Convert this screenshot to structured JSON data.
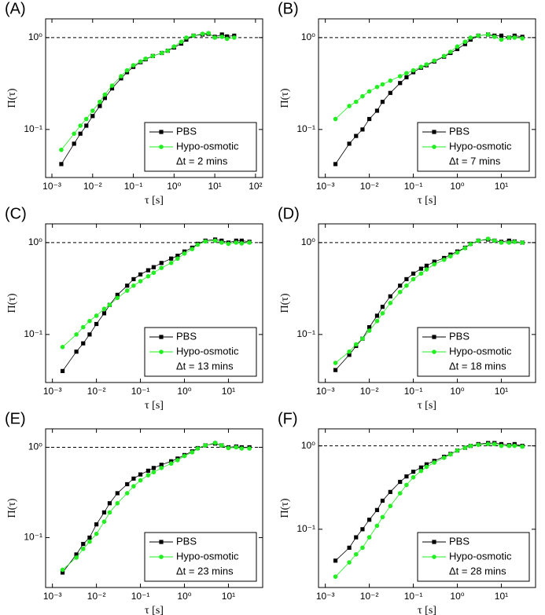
{
  "chart_data": [
    {
      "type": "line",
      "panel_label": "(A)",
      "x_label": "τ [s]",
      "y_label": "Π(τ)",
      "annotation": "Δt = 2 mins",
      "legend": "lower right",
      "log_x": true,
      "log_y": true,
      "reference_line": 1,
      "xlim": [
        0.0007,
        150
      ],
      "ylim": [
        0.03,
        1.6
      ],
      "xticks": [
        {
          "value": 0.001,
          "label": "10⁻³"
        },
        {
          "value": 0.01,
          "label": "10⁻²"
        },
        {
          "value": 0.1,
          "label": "10⁻¹"
        },
        {
          "value": 1,
          "label": "10⁰"
        },
        {
          "value": 10,
          "label": "10¹"
        },
        {
          "value": 100,
          "label": "10²"
        }
      ],
      "yticks": [
        {
          "value": 0.1,
          "label": "10⁻¹"
        },
        {
          "value": 1,
          "label": "10⁰"
        }
      ],
      "x": [
        0.0017,
        0.0035,
        0.005,
        0.007,
        0.01,
        0.015,
        0.02,
        0.03,
        0.05,
        0.07,
        0.1,
        0.15,
        0.2,
        0.3,
        0.5,
        0.7,
        1,
        1.5,
        2,
        3,
        5,
        7,
        10,
        15,
        20,
        30
      ],
      "series": [
        {
          "name": "PBS",
          "color": "#000000",
          "marker": "square",
          "values": [
            0.042,
            0.07,
            0.09,
            0.11,
            0.14,
            0.18,
            0.22,
            0.28,
            0.36,
            0.42,
            0.48,
            0.54,
            0.58,
            0.63,
            0.68,
            0.72,
            0.78,
            0.86,
            0.95,
            1.05,
            1.08,
            1.1,
            1.02,
            1.08,
            1.03,
            1.05
          ]
        },
        {
          "name": "Hypo-osmotic",
          "color": "#22ee22",
          "marker": "circle",
          "values": [
            0.06,
            0.09,
            0.11,
            0.13,
            0.16,
            0.2,
            0.24,
            0.3,
            0.38,
            0.44,
            0.5,
            0.55,
            0.59,
            0.63,
            0.68,
            0.72,
            0.8,
            0.9,
            1.0,
            1.05,
            1.1,
            1.12,
            1.0,
            1.02,
            0.97,
            1.0
          ]
        }
      ]
    },
    {
      "type": "line",
      "panel_label": "(B)",
      "x_label": "τ [s]",
      "y_label": "Π(τ)",
      "annotation": "Δt = 7 mins",
      "legend": "lower right",
      "log_x": true,
      "log_y": true,
      "reference_line": 1,
      "xlim": [
        0.0007,
        60
      ],
      "ylim": [
        0.03,
        1.6
      ],
      "xticks": [
        {
          "value": 0.001,
          "label": "10⁻³"
        },
        {
          "value": 0.01,
          "label": "10⁻²"
        },
        {
          "value": 0.1,
          "label": "10⁻¹"
        },
        {
          "value": 1,
          "label": "10⁰"
        },
        {
          "value": 10,
          "label": "10¹"
        }
      ],
      "yticks": [
        {
          "value": 0.1,
          "label": "10⁻¹"
        },
        {
          "value": 1,
          "label": "10⁰"
        }
      ],
      "x": [
        0.0017,
        0.0035,
        0.005,
        0.007,
        0.01,
        0.015,
        0.02,
        0.03,
        0.05,
        0.07,
        0.1,
        0.15,
        0.2,
        0.3,
        0.5,
        0.7,
        1,
        1.5,
        2,
        3,
        5,
        7,
        10,
        15,
        20,
        30
      ],
      "series": [
        {
          "name": "PBS",
          "color": "#000000",
          "marker": "square",
          "values": [
            0.042,
            0.07,
            0.085,
            0.1,
            0.13,
            0.16,
            0.2,
            0.25,
            0.32,
            0.37,
            0.42,
            0.47,
            0.5,
            0.55,
            0.62,
            0.68,
            0.75,
            0.85,
            0.95,
            1.05,
            1.08,
            1.05,
            1.05,
            1.0,
            1.05,
            1.02
          ]
        },
        {
          "name": "Hypo-osmotic",
          "color": "#22ee22",
          "marker": "circle",
          "values": [
            0.13,
            0.18,
            0.2,
            0.23,
            0.26,
            0.29,
            0.31,
            0.34,
            0.38,
            0.41,
            0.44,
            0.48,
            0.51,
            0.56,
            0.63,
            0.7,
            0.8,
            0.9,
            1.0,
            1.05,
            1.08,
            1.02,
            0.95,
            1.0,
            1.0,
            0.98
          ]
        }
      ]
    },
    {
      "type": "line",
      "panel_label": "(C)",
      "x_label": "τ [s]",
      "y_label": "Π(τ)",
      "annotation": "Δt = 13 mins",
      "legend": "lower right",
      "log_x": true,
      "log_y": true,
      "reference_line": 1,
      "xlim": [
        0.0007,
        60
      ],
      "ylim": [
        0.03,
        1.6
      ],
      "xticks": [
        {
          "value": 0.001,
          "label": "10⁻³"
        },
        {
          "value": 0.01,
          "label": "10⁻²"
        },
        {
          "value": 0.1,
          "label": "10⁻¹"
        },
        {
          "value": 1,
          "label": "10⁰"
        },
        {
          "value": 10,
          "label": "10¹"
        }
      ],
      "yticks": [
        {
          "value": 0.1,
          "label": "10⁻¹"
        },
        {
          "value": 1,
          "label": "10⁰"
        }
      ],
      "x": [
        0.0017,
        0.0035,
        0.005,
        0.007,
        0.01,
        0.015,
        0.02,
        0.03,
        0.05,
        0.07,
        0.1,
        0.15,
        0.2,
        0.3,
        0.5,
        0.7,
        1,
        1.5,
        2,
        3,
        5,
        7,
        10,
        15,
        20,
        30
      ],
      "series": [
        {
          "name": "PBS",
          "color": "#000000",
          "marker": "square",
          "values": [
            0.04,
            0.065,
            0.08,
            0.1,
            0.13,
            0.17,
            0.21,
            0.27,
            0.34,
            0.4,
            0.45,
            0.5,
            0.54,
            0.6,
            0.67,
            0.72,
            0.8,
            0.88,
            0.97,
            1.05,
            1.08,
            1.05,
            1.0,
            1.05,
            1.05,
            1.02
          ]
        },
        {
          "name": "Hypo-osmotic",
          "color": "#22ee22",
          "marker": "circle",
          "values": [
            0.073,
            0.1,
            0.12,
            0.14,
            0.16,
            0.19,
            0.21,
            0.25,
            0.3,
            0.34,
            0.38,
            0.43,
            0.47,
            0.53,
            0.6,
            0.67,
            0.76,
            0.85,
            0.95,
            1.03,
            1.05,
            1.0,
            0.97,
            1.0,
            0.98,
            1.0
          ]
        }
      ]
    },
    {
      "type": "line",
      "panel_label": "(D)",
      "x_label": "τ [s]",
      "y_label": "Π(τ)",
      "annotation": "Δt = 18 mins",
      "legend": "lower right",
      "log_x": true,
      "log_y": true,
      "reference_line": 1,
      "xlim": [
        0.0007,
        60
      ],
      "ylim": [
        0.03,
        1.6
      ],
      "xticks": [
        {
          "value": 0.001,
          "label": "10⁻³"
        },
        {
          "value": 0.01,
          "label": "10⁻²"
        },
        {
          "value": 0.1,
          "label": "10⁻¹"
        },
        {
          "value": 1,
          "label": "10⁰"
        },
        {
          "value": 10,
          "label": "10¹"
        }
      ],
      "yticks": [
        {
          "value": 0.1,
          "label": "10⁻¹"
        },
        {
          "value": 1,
          "label": "10⁰"
        }
      ],
      "x": [
        0.0017,
        0.0035,
        0.005,
        0.007,
        0.01,
        0.015,
        0.02,
        0.03,
        0.05,
        0.07,
        0.1,
        0.15,
        0.2,
        0.3,
        0.5,
        0.7,
        1,
        1.5,
        2,
        3,
        5,
        7,
        10,
        15,
        20,
        30
      ],
      "series": [
        {
          "name": "PBS",
          "color": "#000000",
          "marker": "square",
          "values": [
            0.041,
            0.06,
            0.075,
            0.09,
            0.12,
            0.16,
            0.2,
            0.26,
            0.34,
            0.4,
            0.46,
            0.52,
            0.56,
            0.62,
            0.68,
            0.74,
            0.8,
            0.88,
            0.97,
            1.05,
            1.08,
            1.05,
            1.02,
            1.05,
            1.03,
            1.0
          ]
        },
        {
          "name": "Hypo-osmotic",
          "color": "#22ee22",
          "marker": "circle",
          "values": [
            0.049,
            0.065,
            0.078,
            0.09,
            0.11,
            0.14,
            0.17,
            0.22,
            0.29,
            0.34,
            0.4,
            0.46,
            0.51,
            0.58,
            0.65,
            0.71,
            0.78,
            0.87,
            0.96,
            1.05,
            1.1,
            1.05,
            1.0,
            1.0,
            1.02,
            1.0
          ]
        }
      ]
    },
    {
      "type": "line",
      "panel_label": "(E)",
      "x_label": "τ [s]",
      "y_label": "Π(τ)",
      "annotation": "Δt = 23 mins",
      "legend": "lower right",
      "log_x": true,
      "log_y": true,
      "reference_line": 1,
      "xlim": [
        0.0007,
        60
      ],
      "ylim": [
        0.028,
        1.6
      ],
      "xticks": [
        {
          "value": 0.001,
          "label": "10⁻³"
        },
        {
          "value": 0.01,
          "label": "10⁻²"
        },
        {
          "value": 0.1,
          "label": "10⁻¹"
        },
        {
          "value": 1,
          "label": "10⁰"
        },
        {
          "value": 10,
          "label": "10¹"
        }
      ],
      "yticks": [
        {
          "value": 0.1,
          "label": "10⁻¹"
        },
        {
          "value": 1,
          "label": "10⁰"
        }
      ],
      "x": [
        0.0017,
        0.0035,
        0.005,
        0.007,
        0.01,
        0.015,
        0.02,
        0.03,
        0.05,
        0.07,
        0.1,
        0.15,
        0.2,
        0.3,
        0.5,
        0.7,
        1,
        1.5,
        2,
        3,
        5,
        7,
        10,
        15,
        20,
        30
      ],
      "series": [
        {
          "name": "PBS",
          "color": "#000000",
          "marker": "square",
          "values": [
            0.041,
            0.065,
            0.085,
            0.1,
            0.14,
            0.19,
            0.24,
            0.31,
            0.39,
            0.45,
            0.5,
            0.55,
            0.59,
            0.64,
            0.7,
            0.75,
            0.82,
            0.9,
            0.98,
            1.05,
            1.1,
            1.05,
            1.0,
            1.02,
            1.0,
            1.0
          ]
        },
        {
          "name": "Hypo-osmotic",
          "color": "#22ee22",
          "marker": "circle",
          "values": [
            0.044,
            0.06,
            0.075,
            0.09,
            0.11,
            0.15,
            0.19,
            0.24,
            0.31,
            0.37,
            0.43,
            0.49,
            0.53,
            0.59,
            0.66,
            0.72,
            0.8,
            0.88,
            0.97,
            1.05,
            1.12,
            1.05,
            0.98,
            1.0,
            0.97,
            0.97
          ]
        }
      ]
    },
    {
      "type": "line",
      "panel_label": "(F)",
      "x_label": "τ [s]",
      "y_label": "Π(τ)",
      "annotation": "Δt = 28 mins",
      "legend": "lower right",
      "log_x": true,
      "log_y": true,
      "reference_line": 1,
      "xlim": [
        0.0007,
        60
      ],
      "ylim": [
        0.02,
        1.6
      ],
      "xticks": [
        {
          "value": 0.001,
          "label": "10⁻³"
        },
        {
          "value": 0.01,
          "label": "10⁻²"
        },
        {
          "value": 0.1,
          "label": "10⁻¹"
        },
        {
          "value": 1,
          "label": "10⁰"
        },
        {
          "value": 10,
          "label": "10¹"
        }
      ],
      "yticks": [
        {
          "value": 0.1,
          "label": "10⁻¹"
        },
        {
          "value": 1,
          "label": "10⁰"
        }
      ],
      "x": [
        0.0017,
        0.0035,
        0.005,
        0.007,
        0.01,
        0.015,
        0.02,
        0.03,
        0.05,
        0.07,
        0.1,
        0.15,
        0.2,
        0.3,
        0.5,
        0.7,
        1,
        1.5,
        2,
        3,
        5,
        7,
        10,
        15,
        20,
        30
      ],
      "series": [
        {
          "name": "PBS",
          "color": "#000000",
          "marker": "square",
          "values": [
            0.042,
            0.06,
            0.08,
            0.1,
            0.13,
            0.17,
            0.22,
            0.28,
            0.37,
            0.43,
            0.49,
            0.55,
            0.6,
            0.66,
            0.74,
            0.8,
            0.88,
            0.95,
            1.0,
            1.05,
            1.08,
            1.08,
            1.05,
            1.02,
            1.05,
            1.0
          ]
        },
        {
          "name": "Hypo-osmotic",
          "color": "#22ee22",
          "marker": "circle",
          "values": [
            0.027,
            0.04,
            0.05,
            0.06,
            0.08,
            0.11,
            0.14,
            0.19,
            0.27,
            0.34,
            0.42,
            0.5,
            0.56,
            0.63,
            0.72,
            0.79,
            0.88,
            0.95,
            1.0,
            1.03,
            1.05,
            1.05,
            1.0,
            1.0,
            1.0,
            0.98
          ]
        }
      ]
    }
  ]
}
